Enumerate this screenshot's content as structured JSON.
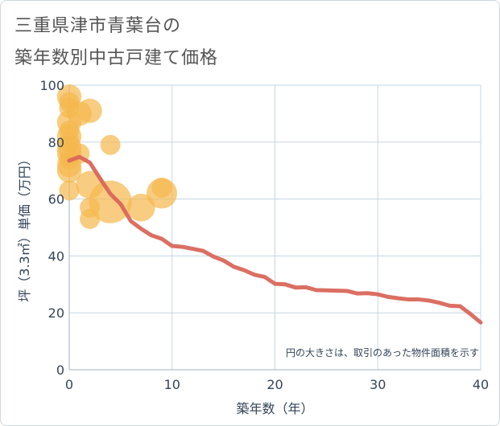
{
  "chart_data": {
    "type": "scatter",
    "title": [
      "三重県津市青葉台の",
      "築年数別中古戸建て価格"
    ],
    "xlabel": "築年数（年）",
    "ylabel": "坪（3.3㎡）単価（万円）",
    "xlim": [
      0,
      40
    ],
    "ylim": [
      0,
      100
    ],
    "xticks": [
      0,
      10,
      20,
      30,
      40
    ],
    "yticks": [
      0,
      20,
      40,
      60,
      80,
      100
    ],
    "grid": true,
    "note": "円の大きさは、取引のあった物件面積を示す",
    "colors": {
      "bubble": "#f5b84d",
      "line": "#d9675a",
      "grid": "#c5d5e3"
    },
    "bubbles": [
      {
        "x": 0,
        "y": 96,
        "size": 2
      },
      {
        "x": 0,
        "y": 94,
        "size": 1
      },
      {
        "x": 0,
        "y": 92,
        "size": 1
      },
      {
        "x": 1,
        "y": 90,
        "size": 2
      },
      {
        "x": 2,
        "y": 91,
        "size": 2
      },
      {
        "x": 0,
        "y": 87,
        "size": 2
      },
      {
        "x": 0,
        "y": 84,
        "size": 1
      },
      {
        "x": 0,
        "y": 82,
        "size": 2
      },
      {
        "x": 0,
        "y": 80,
        "size": 1
      },
      {
        "x": 0,
        "y": 78,
        "size": 2
      },
      {
        "x": 0,
        "y": 76,
        "size": 2
      },
      {
        "x": 1,
        "y": 76,
        "size": 1
      },
      {
        "x": 0,
        "y": 74,
        "size": 1
      },
      {
        "x": 0,
        "y": 72,
        "size": 2
      },
      {
        "x": 0,
        "y": 70,
        "size": 2
      },
      {
        "x": 0,
        "y": 63,
        "size": 1
      },
      {
        "x": 4,
        "y": 79,
        "size": 1
      },
      {
        "x": 2,
        "y": 65,
        "size": 3
      },
      {
        "x": 2,
        "y": 57,
        "size": 1
      },
      {
        "x": 2,
        "y": 53,
        "size": 1
      },
      {
        "x": 4,
        "y": 59,
        "size": 10
      },
      {
        "x": 7,
        "y": 57,
        "size": 3
      },
      {
        "x": 9,
        "y": 62,
        "size": 4
      },
      {
        "x": 9,
        "y": 64,
        "size": 1
      }
    ],
    "trend": {
      "x": [
        0,
        1,
        2,
        3,
        4,
        5,
        6,
        7,
        8,
        9,
        10,
        11,
        12,
        13,
        14,
        15,
        16,
        17,
        18,
        19,
        20,
        21,
        22,
        23,
        24,
        25,
        26,
        27,
        28,
        29,
        30,
        31,
        32,
        33,
        34,
        35,
        36,
        37,
        38,
        39,
        40
      ],
      "y": [
        73.5,
        74.8,
        72.8,
        67.2,
        61.8,
        58.2,
        52.2,
        49.5,
        47.2,
        46,
        43.5,
        43.2,
        42.5,
        41.8,
        39.8,
        38.4,
        36.2,
        35,
        33.4,
        32.6,
        30.2,
        30,
        28.9,
        29,
        28,
        27.9,
        27.8,
        27.7,
        26.8,
        26.9,
        26.5,
        25.6,
        25.1,
        24.7,
        24.7,
        24.3,
        23.5,
        22.5,
        22.3,
        19.6,
        16.6
      ]
    }
  }
}
